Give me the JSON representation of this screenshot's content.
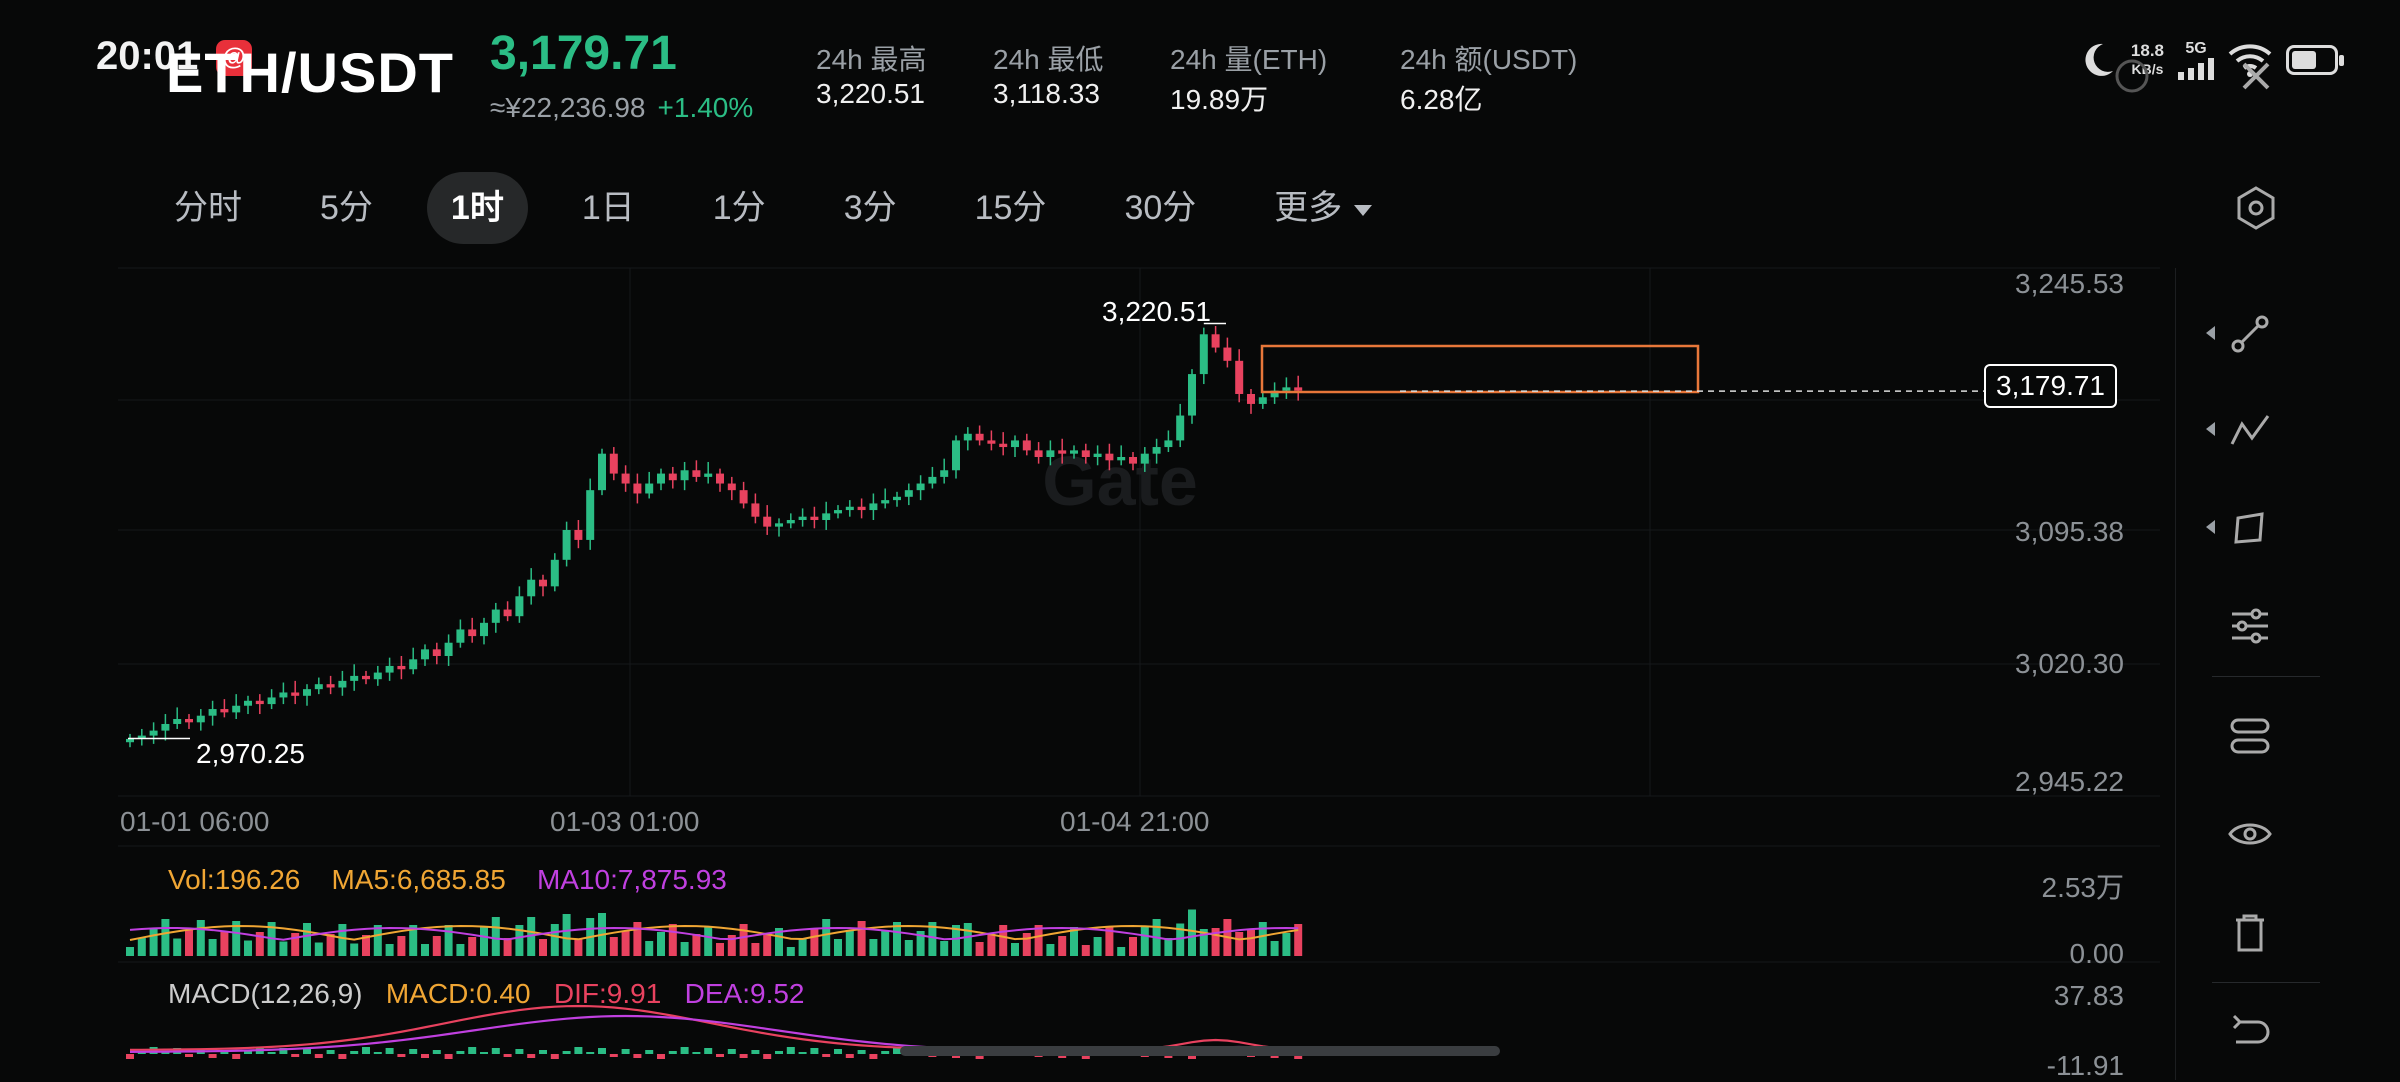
{
  "status_bar": {
    "time": "20:01",
    "speed_value": "18.8",
    "speed_unit": "KB/s",
    "network": "5G"
  },
  "header": {
    "pair": "ETH/USDT",
    "last_price": "3,179.71",
    "cny_price": "≈¥22,236.98",
    "change": "+1.40%",
    "stats": [
      {
        "label": "24h  最高",
        "value": "3,220.51"
      },
      {
        "label": "24h  最低",
        "value": "3,118.33"
      },
      {
        "label": "24h  量(ETH)",
        "value": "19.89万"
      },
      {
        "label": "24h  额(USDT)",
        "value": "6.28亿"
      }
    ]
  },
  "tabs": [
    "分时",
    "5分",
    "1时",
    "1日",
    "1分",
    "3分",
    "15分",
    "30分",
    "更多"
  ],
  "active_tab": "1时",
  "main_chart": {
    "y_labels": [
      "3,245.53",
      "3,095.38",
      "3,020.30",
      "2,945.22"
    ],
    "x_labels": [
      "01-01 06:00",
      "01-03 01:00",
      "01-04 21:00"
    ],
    "high_marker": "3,220.51",
    "low_marker": "2,970.25",
    "current_price_tag": "3,179.71",
    "watermark": "Gate",
    "up_color": "#2bbd85",
    "down_color": "#e8425f"
  },
  "volume_panel": {
    "vol": "Vol:196.26",
    "ma5": "MA5:6,685.85",
    "ma10": "MA10:7,875.93",
    "y_top": "2.53万",
    "y_bottom": "0.00"
  },
  "macd_panel": {
    "title": "MACD(12,26,9)",
    "macd": "MACD:0.40",
    "dif": "DIF:9.91",
    "dea": "DEA:9.52",
    "y_top": "37.83",
    "y_bottom": "-11.91"
  },
  "chart_data": {
    "type": "candlestick",
    "x_ticks": [
      "01-01 06:00",
      "01-03 01:00",
      "01-04 21:00"
    ],
    "y_ticks": [
      3245.53,
      3095.38,
      3020.3,
      2945.22
    ],
    "ylim": [
      2945.22,
      3245.53
    ],
    "high": 3220.51,
    "low": 2970.25,
    "last": 3179.71,
    "grid": true,
    "closes": [
      2970,
      2972,
      2975,
      2979,
      2982,
      2980,
      2984,
      2988,
      2986,
      2990,
      2993,
      2991,
      2995,
      2998,
      2996,
      3000,
      3003,
      3001,
      3005,
      3008,
      3006,
      3010,
      3014,
      3012,
      3018,
      3024,
      3020,
      3028,
      3036,
      3032,
      3040,
      3048,
      3044,
      3056,
      3066,
      3062,
      3078,
      3096,
      3090,
      3120,
      3142,
      3130,
      3124,
      3118,
      3124,
      3130,
      3126,
      3132,
      3128,
      3130,
      3124,
      3120,
      3112,
      3104,
      3098,
      3100,
      3102,
      3104,
      3102,
      3106,
      3108,
      3110,
      3108,
      3112,
      3114,
      3116,
      3120,
      3124,
      3128,
      3132,
      3150,
      3154,
      3150,
      3148,
      3146,
      3150,
      3144,
      3140,
      3144,
      3142,
      3144,
      3140,
      3142,
      3138,
      3140,
      3136,
      3142,
      3146,
      3150,
      3165,
      3190,
      3214,
      3206,
      3198,
      3178,
      3172,
      3176,
      3180,
      3182,
      3180
    ]
  }
}
